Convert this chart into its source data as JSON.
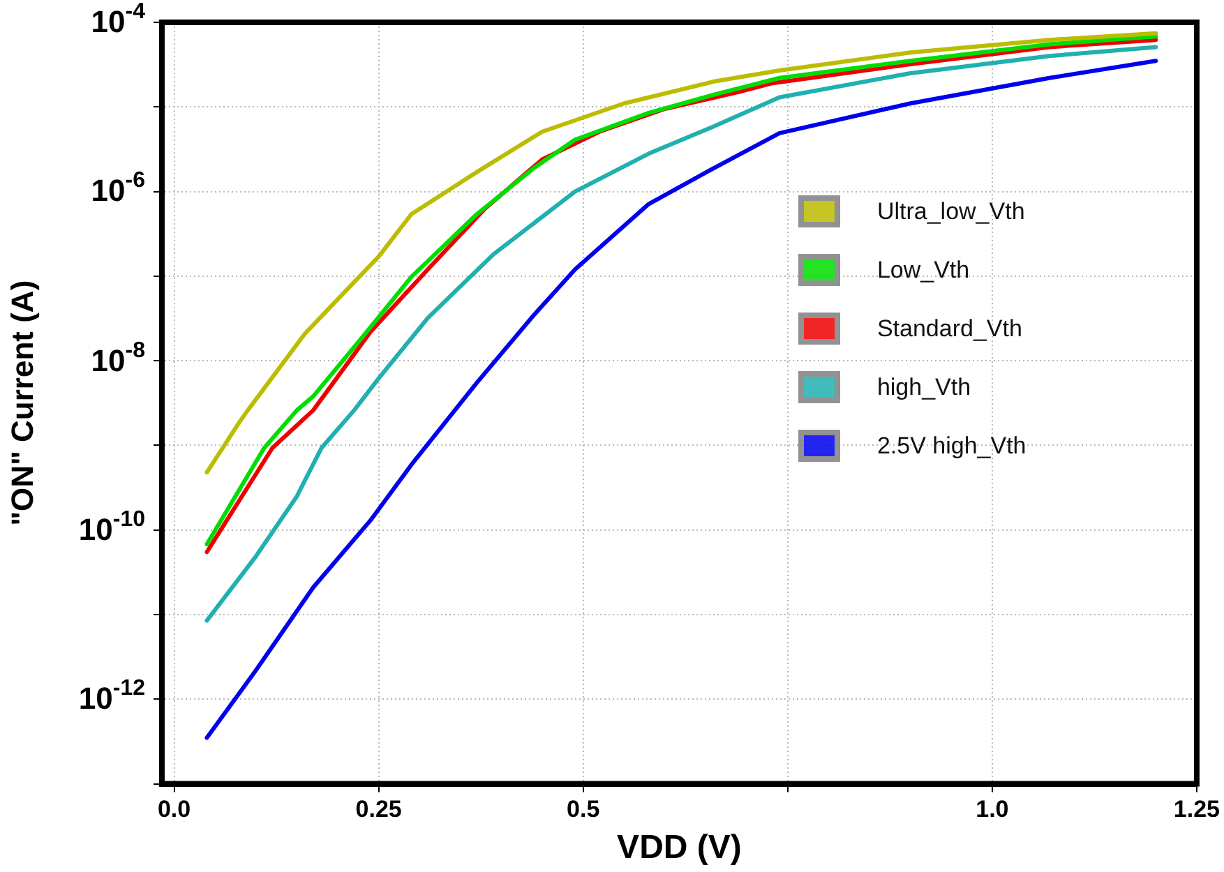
{
  "chart_data": {
    "type": "line",
    "xlabel": "VDD (V)",
    "ylabel": "\"ON\" Current (A)",
    "log": "y",
    "grid": true,
    "legend": "right",
    "marker": "none",
    "line_style": "solid",
    "xlim": [
      -0.015,
      1.25
    ],
    "xticks": [
      {
        "value": 0,
        "label": "0.0"
      },
      0.25,
      0.5,
      {
        "value": 0.75,
        "label": null
      },
      {
        "value": 1,
        "label": "1.0"
      },
      1.25
    ],
    "ylim": [
      1e-13,
      0.0001
    ],
    "yticks": [
      {
        "value": 1e-13,
        "label": null
      },
      {
        "value": 1e-12,
        "label": "10$^{-12}$"
      },
      {
        "value": 1e-11,
        "label": null
      },
      {
        "value": 1e-10,
        "label": "10$^{-10}$"
      },
      {
        "value": 1e-09,
        "label": null
      },
      {
        "value": 1e-08,
        "label": "10$^{-8}$"
      },
      {
        "value": 1e-07,
        "label": null
      },
      {
        "value": 1e-06,
        "label": "10$^{-6}$"
      },
      {
        "value": 1e-05,
        "label": null
      },
      {
        "value": 0.0001,
        "label": "10$^{-4}$"
      }
    ],
    "series": [
      {
        "name": "Ultra_low_Vth",
        "color": "#bcbc00",
        "x": [
          0.04,
          0.08,
          0.09,
          0.16,
          0.22,
          0.25,
          0.29,
          0.37,
          0.45,
          0.55,
          0.66,
          0.74,
          0.9,
          1.07,
          1.2
        ],
        "values": [
          4.8e-10,
          1.9e-09,
          2.6e-09,
          2.1e-08,
          8.5e-08,
          1.7e-07,
          5.4e-07,
          1.7e-06,
          5.1e-06,
          1.1e-05,
          2e-05,
          2.7e-05,
          4.4e-05,
          6.2e-05,
          7.4e-05
        ]
      },
      {
        "name": "Low_Vth",
        "color": "#00dd00",
        "x": [
          0.04,
          0.11,
          0.15,
          0.17,
          0.23,
          0.29,
          0.37,
          0.44,
          0.49,
          0.58,
          0.66,
          0.74,
          0.9,
          1.07,
          1.2
        ],
        "values": [
          6.8e-11,
          9.3e-10,
          2.6e-09,
          3.8e-09,
          1.9e-08,
          9.8e-08,
          5.4e-07,
          1.9e-06,
          4.1e-06,
          8.5e-06,
          1.4e-05,
          2.2e-05,
          3.5e-05,
          5.5e-05,
          6.8e-05
        ]
      },
      {
        "name": "Standard_Vth",
        "color": "#ee0000",
        "x": [
          0.04,
          0.12,
          0.17,
          0.24,
          0.31,
          0.38,
          0.45,
          0.52,
          0.6,
          0.69,
          0.73,
          0.9,
          1.07,
          1.2
        ],
        "values": [
          5.5e-11,
          9.3e-10,
          2.6e-09,
          2.2e-08,
          1.2e-07,
          6.3e-07,
          2.4e-06,
          5.1e-06,
          9.5e-06,
          1.5e-05,
          1.9e-05,
          3.2e-05,
          5.1e-05,
          6.2e-05
        ]
      },
      {
        "name": "high_Vth",
        "color": "#20b0b0",
        "x": [
          0.04,
          0.1,
          0.15,
          0.18,
          0.22,
          0.25,
          0.31,
          0.39,
          0.49,
          0.58,
          0.66,
          0.74,
          0.9,
          1.07,
          1.2
        ],
        "values": [
          8.5e-12,
          4.9e-11,
          2.5e-10,
          9.3e-10,
          2.6e-09,
          6.2e-09,
          3.2e-08,
          1.8e-07,
          1e-06,
          2.8e-06,
          5.9e-06,
          1.3e-05,
          2.5e-05,
          4e-05,
          5.1e-05
        ]
      },
      {
        "name": "2.5V high_Vth",
        "color": "#0000ee",
        "x": [
          0.04,
          0.1,
          0.17,
          0.24,
          0.29,
          0.37,
          0.44,
          0.49,
          0.58,
          0.66,
          0.74,
          0.9,
          1.07,
          1.2
        ],
        "values": [
          3.5e-13,
          2.2e-12,
          2.1e-11,
          1.3e-10,
          5.9e-10,
          5.5e-09,
          3.5e-08,
          1.2e-07,
          7.1e-07,
          1.9e-06,
          4.9e-06,
          1.1e-05,
          2.2e-05,
          3.5e-05
        ]
      }
    ]
  }
}
